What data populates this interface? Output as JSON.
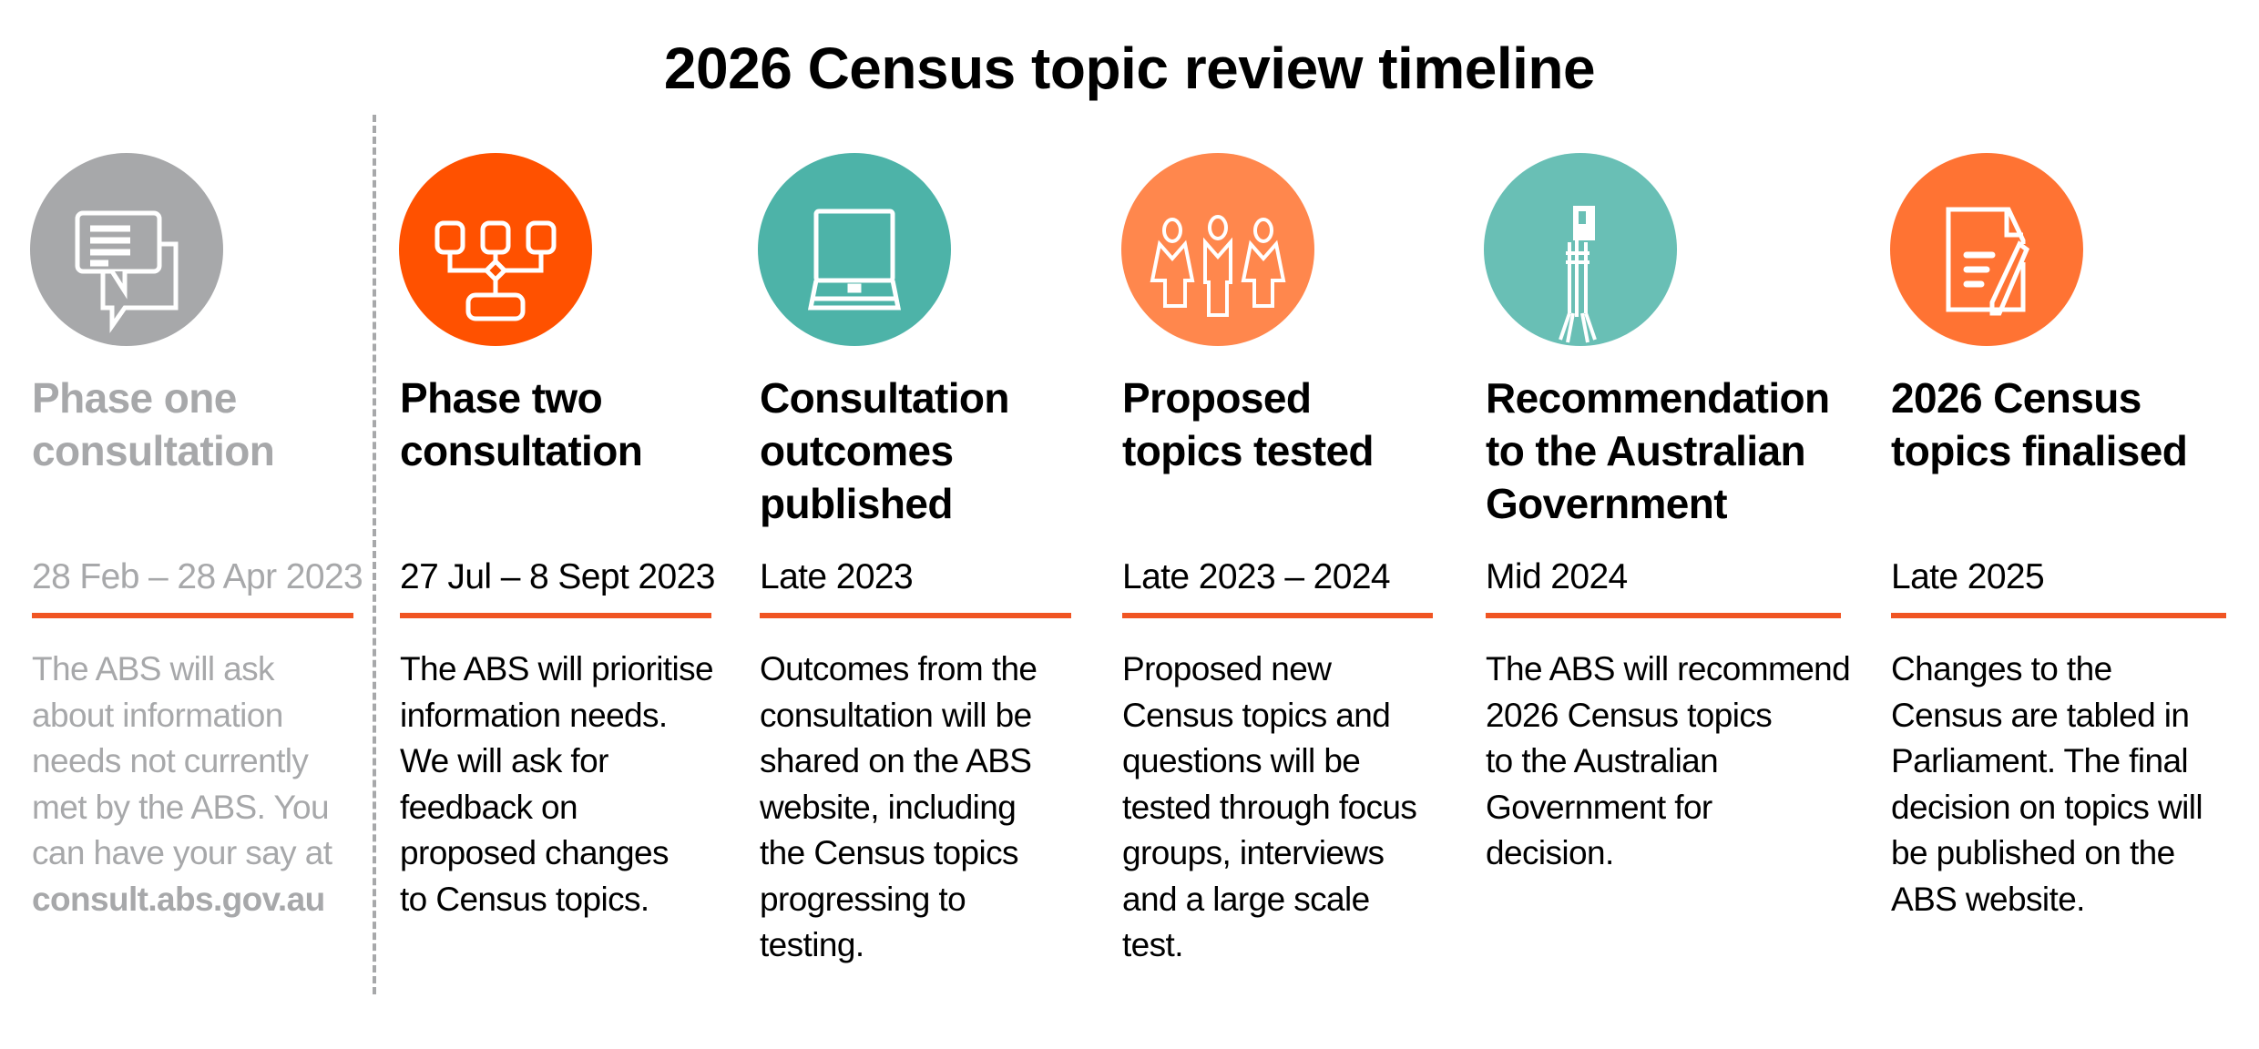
{
  "title": "2026 Census topic review timeline",
  "phases": [
    {
      "heading": [
        "Phase one",
        "consultation"
      ],
      "date": "28 Feb – 28 Apr 2023",
      "body": [
        "The ABS will ask",
        "about information",
        "needs not currently",
        "met by the ABS. You",
        "can have your say at"
      ],
      "link": "consult.abs.gov.au",
      "icon": "chat-bubbles-icon",
      "color": "#a7a8aa",
      "status": "past"
    },
    {
      "heading": [
        "Phase two",
        "consultation"
      ],
      "date": "27 Jul – 8 Sept 2023",
      "body": [
        "The ABS will prioritise",
        "information needs.",
        "We will ask for",
        "feedback on",
        "proposed changes",
        "to Census topics."
      ],
      "icon": "flowchart-icon",
      "color": "#ff5100"
    },
    {
      "heading": [
        "Consultation",
        "outcomes",
        "published"
      ],
      "date": "Late 2023",
      "body": [
        "Outcomes from the",
        "consultation will be",
        "shared on the ABS",
        "website, including",
        "the Census topics",
        "progressing to",
        "testing."
      ],
      "icon": "laptop-icon",
      "color": "#4db3a8"
    },
    {
      "heading": [
        "Proposed",
        "topics tested"
      ],
      "date": "Late 2023 – 2024",
      "body": [
        "Proposed new",
        "Census topics and",
        "questions will be",
        "tested through focus",
        "groups, interviews",
        "and a large scale",
        "test."
      ],
      "icon": "people-group-icon",
      "color": "#ff874d"
    },
    {
      "heading": [
        "Recommendation",
        "to the Australian",
        "Government"
      ],
      "date": "Mid 2024",
      "body": [
        "The ABS will recommend",
        "2026 Census topics",
        "to the Australian",
        "Government for",
        "decision."
      ],
      "icon": "flagpole-icon",
      "color": "#69bfb5"
    },
    {
      "heading": [
        "2026 Census",
        "topics finalised"
      ],
      "date": "Late 2025",
      "body": [
        "Changes to the",
        "Census are tabled in",
        "Parliament. The final",
        "decision on topics will",
        "be published on the",
        "ABS website."
      ],
      "icon": "document-pencil-icon",
      "color": "#ff7333"
    }
  ],
  "rule_color": "#f05523"
}
